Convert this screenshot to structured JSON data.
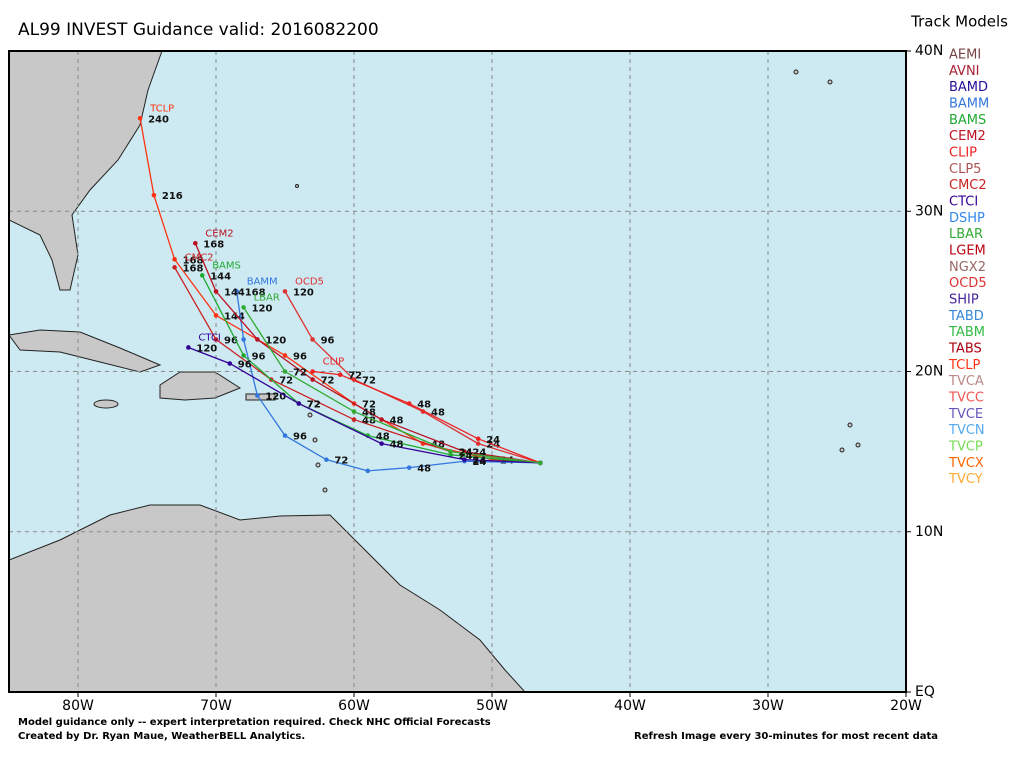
{
  "map": {
    "title": "AL99 INVEST Guidance valid: 2016082200",
    "legend_title": "Track Models",
    "xlim": [
      -85,
      -20
    ],
    "ylim": [
      0,
      40
    ],
    "xticks": [
      {
        "value": -80,
        "label": "80W"
      },
      {
        "value": -70,
        "label": "70W"
      },
      {
        "value": -60,
        "label": "60W"
      },
      {
        "value": -50,
        "label": "50W"
      },
      {
        "value": -40,
        "label": "40W"
      },
      {
        "value": -30,
        "label": "30W"
      },
      {
        "value": -20,
        "label": "20W"
      }
    ],
    "yticks": [
      {
        "value": 0,
        "label": "EQ"
      },
      {
        "value": 10,
        "label": "10N"
      },
      {
        "value": 20,
        "label": "20N"
      },
      {
        "value": 30,
        "label": "30N"
      },
      {
        "value": 40,
        "label": "40N"
      }
    ],
    "grid": true,
    "models": [
      {
        "name": "AEMI",
        "color": "#774444"
      },
      {
        "name": "AVNI",
        "color": "#aa2233"
      },
      {
        "name": "BAMD",
        "color": "#221199"
      },
      {
        "name": "BAMM",
        "color": "#3377dd"
      },
      {
        "name": "BAMS",
        "color": "#22aa33"
      },
      {
        "name": "CEM2",
        "color": "#bb1122"
      },
      {
        "name": "CLIP",
        "color": "#ee2222"
      },
      {
        "name": "CLP5",
        "color": "#aa5555"
      },
      {
        "name": "CMC2",
        "color": "#cc2222"
      },
      {
        "name": "CTCI",
        "color": "#330099"
      },
      {
        "name": "DSHP",
        "color": "#3388ee"
      },
      {
        "name": "LBAR",
        "color": "#33aa33"
      },
      {
        "name": "LGEM",
        "color": "#bb0011"
      },
      {
        "name": "NGX2",
        "color": "#996666"
      },
      {
        "name": "OCD5",
        "color": "#dd3333"
      },
      {
        "name": "SHIP",
        "color": "#442299"
      },
      {
        "name": "TABD",
        "color": "#3388dd"
      },
      {
        "name": "TABM",
        "color": "#33bb44"
      },
      {
        "name": "TABS",
        "color": "#aa0011"
      },
      {
        "name": "TCLP",
        "color": "#ff3311"
      },
      {
        "name": "TVCA",
        "color": "#bb8888"
      },
      {
        "name": "TVCC",
        "color": "#ee5555"
      },
      {
        "name": "TVCE",
        "color": "#6655bb"
      },
      {
        "name": "TVCN",
        "color": "#55aaee"
      },
      {
        "name": "TVCP",
        "color": "#77dd55"
      },
      {
        "name": "TVCX",
        "color": "#ff6600"
      },
      {
        "name": "TVCY",
        "color": "#ffaa33"
      }
    ],
    "tracks": [
      {
        "name": "TCLP",
        "color": "#ff3311",
        "lon": [
          -46.5,
          -50,
          -55,
          -60,
          -65,
          -70,
          -73,
          -74.5,
          -75.5
        ],
        "lat": [
          14.3,
          14.5,
          15.5,
          18,
          21,
          23.5,
          27,
          31,
          35.8
        ],
        "hours": [
          null,
          "24",
          "48",
          "72",
          "96",
          "144",
          "168",
          "216",
          "240"
        ]
      },
      {
        "name": "BAMM",
        "color": "#3377dd",
        "lon": [
          -46.5,
          -52,
          -56,
          -59,
          -62,
          -65,
          -67,
          -68,
          -68.5
        ],
        "lat": [
          14.3,
          14.4,
          14,
          13.8,
          14.5,
          16,
          18.5,
          22,
          25
        ],
        "hours": [
          null,
          "24",
          "48",
          null,
          "72",
          "96",
          "120",
          null,
          "168"
        ]
      },
      {
        "name": "CEM2",
        "color": "#bb1122",
        "lon": [
          -46.5,
          -52,
          -58,
          -63,
          -67,
          -70,
          -71.5
        ],
        "lat": [
          14.3,
          15,
          17,
          19.5,
          22,
          25,
          28
        ],
        "hours": [
          null,
          "24",
          "48",
          "72",
          "120",
          "144",
          "168"
        ]
      },
      {
        "name": "OCD5",
        "color": "#dd3333",
        "lon": [
          -46.5,
          -51,
          -55,
          -60,
          -63,
          -65
        ],
        "lat": [
          14.3,
          15.5,
          17.5,
          19.5,
          22,
          25
        ],
        "hours": [
          null,
          "24",
          "48",
          "72",
          "96",
          "120"
        ]
      },
      {
        "name": "CLIP",
        "color": "#ee2222",
        "lon": [
          -46.5,
          -51,
          -56,
          -61,
          -63
        ],
        "lat": [
          14.3,
          15.8,
          18,
          19.8,
          20
        ],
        "hours": [
          null,
          "24",
          "48",
          "72",
          null
        ]
      },
      {
        "name": "CMC2",
        "color": "#cc2222",
        "lon": [
          -46.5,
          -53,
          -60,
          -66,
          -70,
          -73
        ],
        "lat": [
          14.3,
          15,
          17,
          19.5,
          22,
          26.5
        ],
        "hours": [
          null,
          "24",
          "48",
          "72",
          "96",
          "168"
        ]
      },
      {
        "name": "BAMS",
        "color": "#22aa33",
        "lon": [
          -46.5,
          -53,
          -59,
          -64,
          -68,
          -71
        ],
        "lat": [
          14.3,
          14.8,
          16,
          18,
          21,
          26
        ],
        "hours": [
          null,
          "24",
          "48",
          "72",
          "96",
          "144"
        ]
      },
      {
        "name": "CTCI",
        "color": "#330099",
        "lon": [
          -46.5,
          -52,
          -58,
          -64,
          -69,
          -72
        ],
        "lat": [
          14.3,
          14.5,
          15.5,
          18,
          20.5,
          21.5
        ],
        "hours": [
          null,
          "24",
          "48",
          "72",
          "96",
          "120"
        ]
      },
      {
        "name": "LBAR",
        "color": "#33aa33",
        "lon": [
          -46.5,
          -53,
          -60,
          -65,
          -68
        ],
        "lat": [
          14.3,
          15,
          17.5,
          20,
          24
        ],
        "hours": [
          null,
          "24",
          "48",
          "72",
          "120"
        ]
      }
    ],
    "footer_left": [
      "Model guidance only -- expert interpretation required.  Check NHC Official Forecasts",
      "Created by Dr. Ryan Maue, WeatherBELL Analytics."
    ],
    "footer_right": "Refresh Image every 30-minutes for most recent data"
  }
}
